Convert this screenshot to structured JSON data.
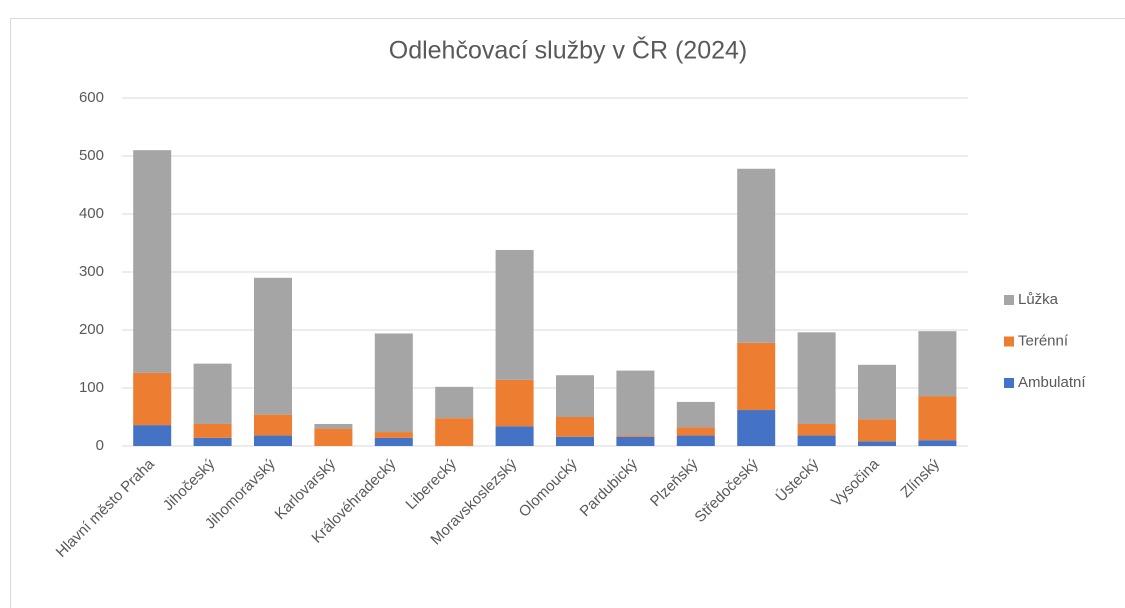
{
  "chart_data": {
    "type": "stacked_bar",
    "title": "Odlehčovací služby v ČR (2024)",
    "categories": [
      "Hlavní město Praha",
      "Jihočeský",
      "Jihomoravský",
      "Karlovarský",
      "Královéhradecký",
      "Liberecký",
      "Moravskoslezský",
      "Olomoucký",
      "Pardubický",
      "Plzeňský",
      "Středočeský",
      "Ústecký",
      "Vysočina",
      "Zlínský"
    ],
    "series": [
      {
        "name": "Ambulatní",
        "color": "#4472c4",
        "values": [
          36,
          14,
          18,
          0,
          14,
          0,
          34,
          16,
          16,
          18,
          62,
          18,
          8,
          10
        ]
      },
      {
        "name": "Terénní",
        "color": "#ed7d31",
        "values": [
          90,
          24,
          36,
          30,
          10,
          48,
          80,
          34,
          2,
          14,
          116,
          20,
          38,
          76
        ]
      },
      {
        "name": "Lůžka",
        "color": "#a5a5a5",
        "values": [
          384,
          104,
          236,
          8,
          170,
          54,
          224,
          72,
          112,
          44,
          300,
          158,
          94,
          112
        ]
      }
    ],
    "ylim": [
      0,
      600
    ],
    "yticks": [
      0,
      100,
      200,
      300,
      400,
      500,
      600
    ],
    "grid": true,
    "legend": "right"
  }
}
